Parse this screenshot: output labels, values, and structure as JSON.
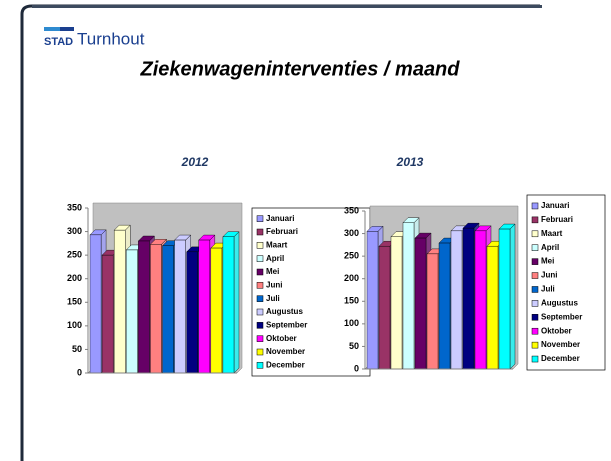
{
  "header": {
    "logo_small": "STAD",
    "logo_large": "Turnhout"
  },
  "title": "Ziekenwageninterventies / maand",
  "chart_data": [
    {
      "type": "bar",
      "title": "2012",
      "ylim": [
        0,
        350
      ],
      "yticks": [
        0,
        50,
        100,
        150,
        200,
        250,
        300,
        350
      ],
      "grid": false,
      "legend": "right",
      "series": [
        {
          "name": "Januari",
          "color": "#9999ff",
          "values": [
            293
          ]
        },
        {
          "name": "Februari",
          "color": "#993366",
          "values": [
            250
          ]
        },
        {
          "name": "Maart",
          "color": "#ffffcc",
          "values": [
            303
          ]
        },
        {
          "name": "April",
          "color": "#ccffff",
          "values": [
            261
          ]
        },
        {
          "name": "Mei",
          "color": "#660066",
          "values": [
            280
          ]
        },
        {
          "name": "Juni",
          "color": "#ff8080",
          "values": [
            273
          ]
        },
        {
          "name": "Juli",
          "color": "#0066cc",
          "values": [
            270
          ]
        },
        {
          "name": "Augustus",
          "color": "#ccccff",
          "values": [
            282
          ]
        },
        {
          "name": "September",
          "color": "#000080",
          "values": [
            257
          ]
        },
        {
          "name": "Oktober",
          "color": "#ff00ff",
          "values": [
            282
          ]
        },
        {
          "name": "November",
          "color": "#ffff00",
          "values": [
            265
          ]
        },
        {
          "name": "December",
          "color": "#00ffff",
          "values": [
            289
          ]
        }
      ]
    },
    {
      "type": "bar",
      "title": "2013",
      "ylim": [
        0,
        350
      ],
      "yticks": [
        0,
        50,
        100,
        150,
        200,
        250,
        300,
        350
      ],
      "grid": false,
      "legend": "right",
      "series": [
        {
          "name": "Januari",
          "color": "#9999ff",
          "values": [
            305
          ]
        },
        {
          "name": "Februari",
          "color": "#993366",
          "values": [
            272
          ]
        },
        {
          "name": "Maart",
          "color": "#ffffcc",
          "values": [
            293
          ]
        },
        {
          "name": "April",
          "color": "#ccffff",
          "values": [
            324
          ]
        },
        {
          "name": "Mei",
          "color": "#660066",
          "values": [
            290
          ]
        },
        {
          "name": "Juni",
          "color": "#ff8080",
          "values": [
            255
          ]
        },
        {
          "name": "Juli",
          "color": "#0066cc",
          "values": [
            279
          ]
        },
        {
          "name": "Augustus",
          "color": "#ccccff",
          "values": [
            306
          ]
        },
        {
          "name": "September",
          "color": "#000080",
          "values": [
            312
          ]
        },
        {
          "name": "Oktober",
          "color": "#ff00ff",
          "values": [
            306
          ]
        },
        {
          "name": "November",
          "color": "#ffff00",
          "values": [
            272
          ]
        },
        {
          "name": "December",
          "color": "#00ffff",
          "values": [
            310
          ]
        }
      ]
    }
  ]
}
